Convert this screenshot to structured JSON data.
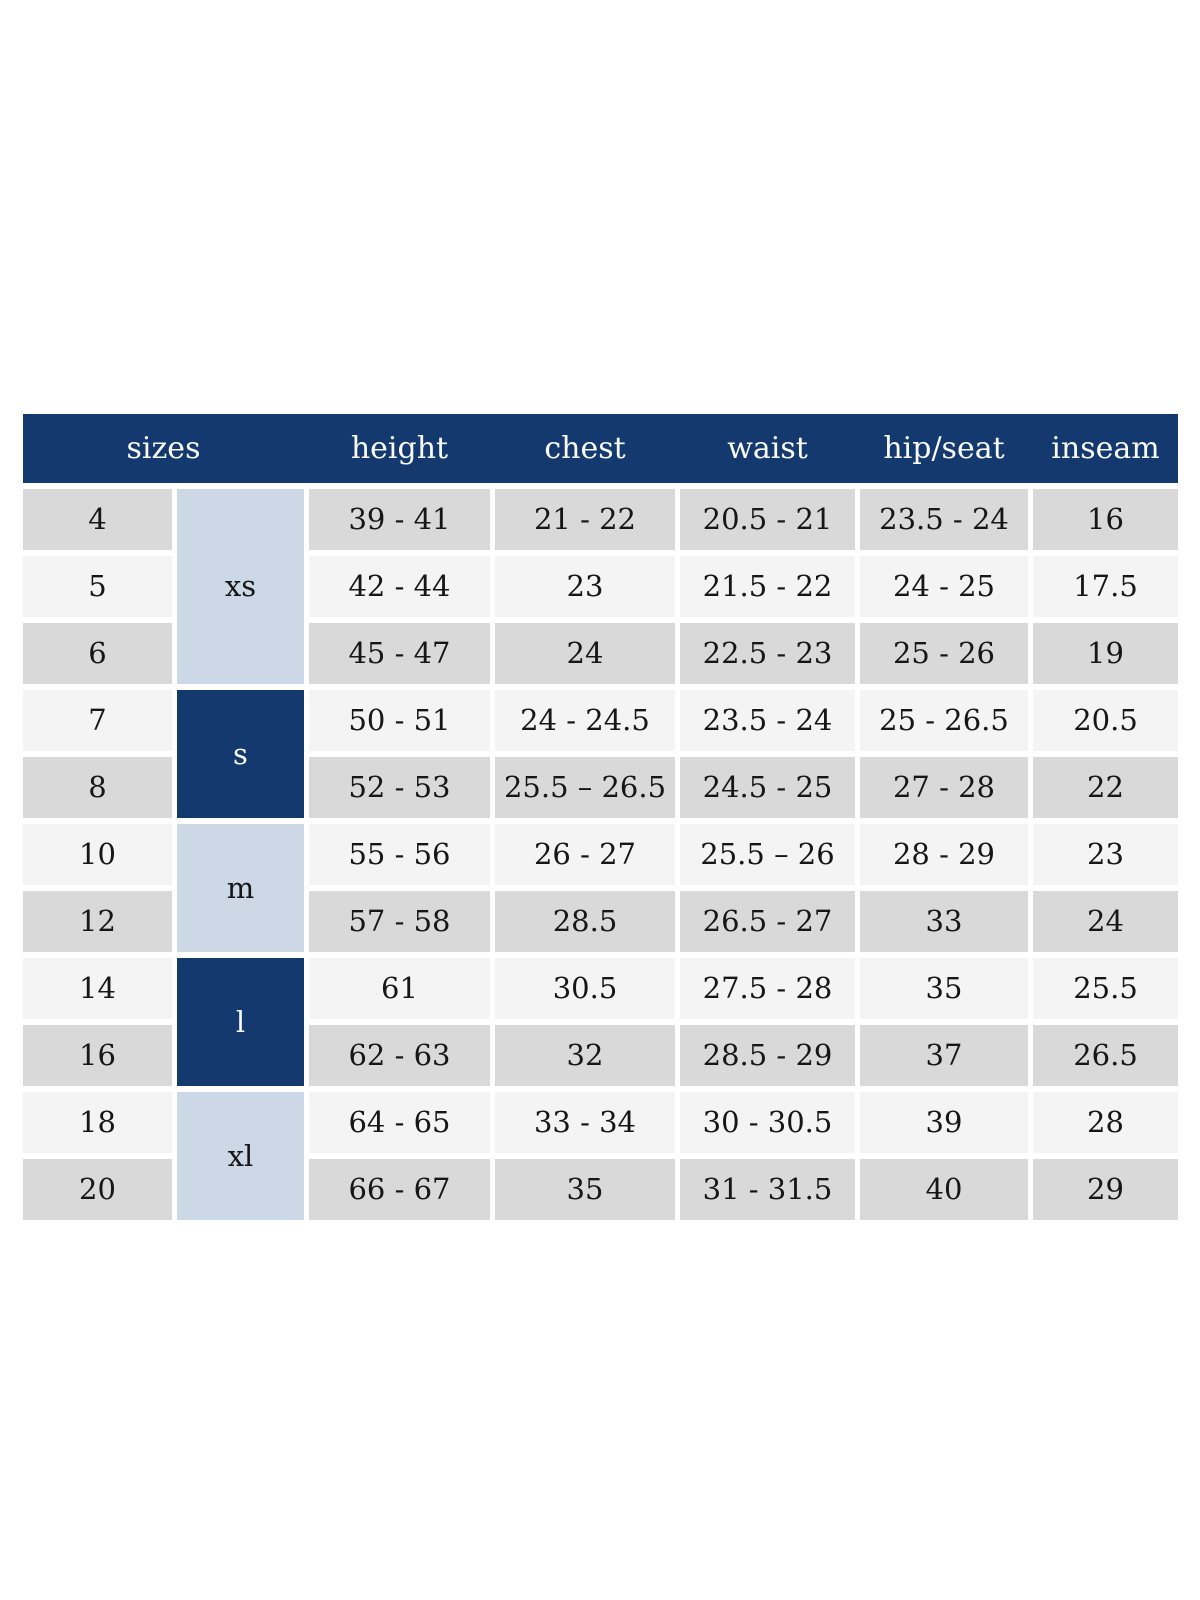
{
  "table": {
    "colors": {
      "header_bg": "#14396e",
      "header_text": "#fafbfd",
      "band_light": "#ccd8e6",
      "band_dark": "#14396e",
      "band_dark_text": "#fafbfd",
      "row_gray": "#d9d9d9",
      "row_light": "#f4f4f4",
      "cell_text": "#161616",
      "page_bg": "#ffffff"
    },
    "columns": [
      {
        "key": "sizes",
        "label": "sizes"
      },
      {
        "key": "height",
        "label": "height"
      },
      {
        "key": "chest",
        "label": "chest"
      },
      {
        "key": "waist",
        "label": "waist"
      },
      {
        "key": "hip_seat",
        "label": "hip/seat"
      },
      {
        "key": "inseam",
        "label": "inseam"
      }
    ],
    "measure_keys": [
      "height",
      "chest",
      "waist",
      "hip_seat",
      "inseam"
    ],
    "size_groups": [
      {
        "label": "xs",
        "band": "light",
        "rows": [
          {
            "size": "4",
            "height": "39 - 41",
            "chest": "21 - 22",
            "waist": "20.5 - 21",
            "hip_seat": "23.5 - 24",
            "inseam": "16"
          },
          {
            "size": "5",
            "height": "42 - 44",
            "chest": "23",
            "waist": "21.5 - 22",
            "hip_seat": "24 - 25",
            "inseam": "17.5"
          },
          {
            "size": "6",
            "height": "45 - 47",
            "chest": "24",
            "waist": "22.5 - 23",
            "hip_seat": "25 - 26",
            "inseam": "19"
          }
        ]
      },
      {
        "label": "s",
        "band": "dark",
        "rows": [
          {
            "size": "7",
            "height": "50 - 51",
            "chest": "24 - 24.5",
            "waist": "23.5 - 24",
            "hip_seat": "25 - 26.5",
            "inseam": "20.5"
          },
          {
            "size": "8",
            "height": "52 - 53",
            "chest": "25.5 – 26.5",
            "waist": "24.5 - 25",
            "hip_seat": "27 - 28",
            "inseam": "22"
          }
        ]
      },
      {
        "label": "m",
        "band": "light",
        "rows": [
          {
            "size": "10",
            "height": "55 - 56",
            "chest": "26 - 27",
            "waist": "25.5 – 26",
            "hip_seat": "28 - 29",
            "inseam": "23"
          },
          {
            "size": "12",
            "height": "57 - 58",
            "chest": "28.5",
            "waist": "26.5 - 27",
            "hip_seat": "33",
            "inseam": "24"
          }
        ]
      },
      {
        "label": "l",
        "band": "dark",
        "rows": [
          {
            "size": "14",
            "height": "61",
            "chest": "30.5",
            "waist": "27.5 - 28",
            "hip_seat": "35",
            "inseam": "25.5"
          },
          {
            "size": "16",
            "height": "62 - 63",
            "chest": "32",
            "waist": "28.5 - 29",
            "hip_seat": "37",
            "inseam": "26.5"
          }
        ]
      },
      {
        "label": "xl",
        "band": "light",
        "rows": [
          {
            "size": "18",
            "height": "64 - 65",
            "chest": "33 - 34",
            "waist": "30 - 30.5",
            "hip_seat": "39",
            "inseam": "28"
          },
          {
            "size": "20",
            "height": "66 - 67",
            "chest": "35",
            "waist": "31 - 31.5",
            "hip_seat": "40",
            "inseam": "29"
          }
        ]
      }
    ]
  }
}
